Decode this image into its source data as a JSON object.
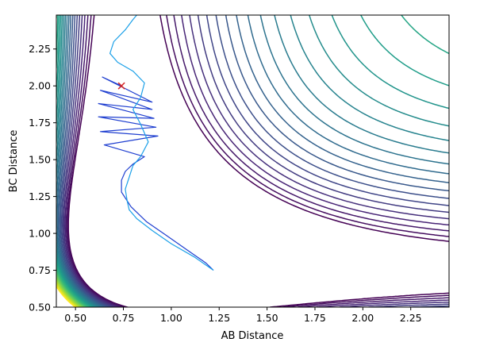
{
  "chart_data": {
    "type": "contour",
    "title": "",
    "xlabel": "AB Distance",
    "ylabel": "BC Distance",
    "xlim": [
      0.4,
      2.45
    ],
    "ylim": [
      0.5,
      2.48
    ],
    "xticks": [
      0.5,
      0.75,
      1.0,
      1.25,
      1.5,
      1.75,
      2.0,
      2.25
    ],
    "xtick_labels": [
      "0.50",
      "0.75",
      "1.00",
      "1.25",
      "1.50",
      "1.75",
      "2.00",
      "2.25"
    ],
    "yticks": [
      0.5,
      0.75,
      1.0,
      1.25,
      1.5,
      1.75,
      2.0,
      2.25
    ],
    "ytick_labels": [
      "0.50",
      "0.75",
      "1.00",
      "1.25",
      "1.50",
      "1.75",
      "2.00",
      "2.25"
    ],
    "grid": false,
    "colormap": "viridis",
    "contour_levels": 30,
    "start_point": {
      "x": 0.74,
      "y": 2.0,
      "marker": "x",
      "color": "#d62728"
    },
    "trajectories": [
      {
        "color": "#1f3fd0",
        "points": [
          [
            0.74,
            2.0
          ],
          [
            0.64,
            2.06
          ],
          [
            0.9,
            1.89
          ],
          [
            0.63,
            1.97
          ],
          [
            0.9,
            1.84
          ],
          [
            0.62,
            1.88
          ],
          [
            0.91,
            1.78
          ],
          [
            0.62,
            1.79
          ],
          [
            0.92,
            1.72
          ],
          [
            0.63,
            1.69
          ],
          [
            0.93,
            1.66
          ],
          [
            0.65,
            1.6
          ],
          [
            0.86,
            1.52
          ],
          [
            0.8,
            1.47
          ],
          [
            0.76,
            1.42
          ],
          [
            0.74,
            1.36
          ],
          [
            0.74,
            1.28
          ],
          [
            0.79,
            1.18
          ],
          [
            0.87,
            1.08
          ],
          [
            0.97,
            0.99
          ],
          [
            1.08,
            0.89
          ],
          [
            1.18,
            0.8
          ],
          [
            1.22,
            0.75
          ]
        ]
      },
      {
        "color": "#1ba0e8",
        "points": [
          [
            1.22,
            0.75
          ],
          [
            1.12,
            0.84
          ],
          [
            1.0,
            0.93
          ],
          [
            0.9,
            1.02
          ],
          [
            0.82,
            1.1
          ],
          [
            0.78,
            1.16
          ],
          [
            0.77,
            1.22
          ],
          [
            0.76,
            1.3
          ],
          [
            0.78,
            1.38
          ],
          [
            0.8,
            1.46
          ],
          [
            0.84,
            1.52
          ],
          [
            0.88,
            1.62
          ],
          [
            0.84,
            1.74
          ],
          [
            0.8,
            1.84
          ],
          [
            0.84,
            1.92
          ],
          [
            0.86,
            2.02
          ],
          [
            0.8,
            2.1
          ],
          [
            0.72,
            2.16
          ],
          [
            0.68,
            2.22
          ],
          [
            0.7,
            2.3
          ],
          [
            0.76,
            2.38
          ],
          [
            0.8,
            2.45
          ],
          [
            0.82,
            2.48
          ]
        ]
      }
    ]
  }
}
